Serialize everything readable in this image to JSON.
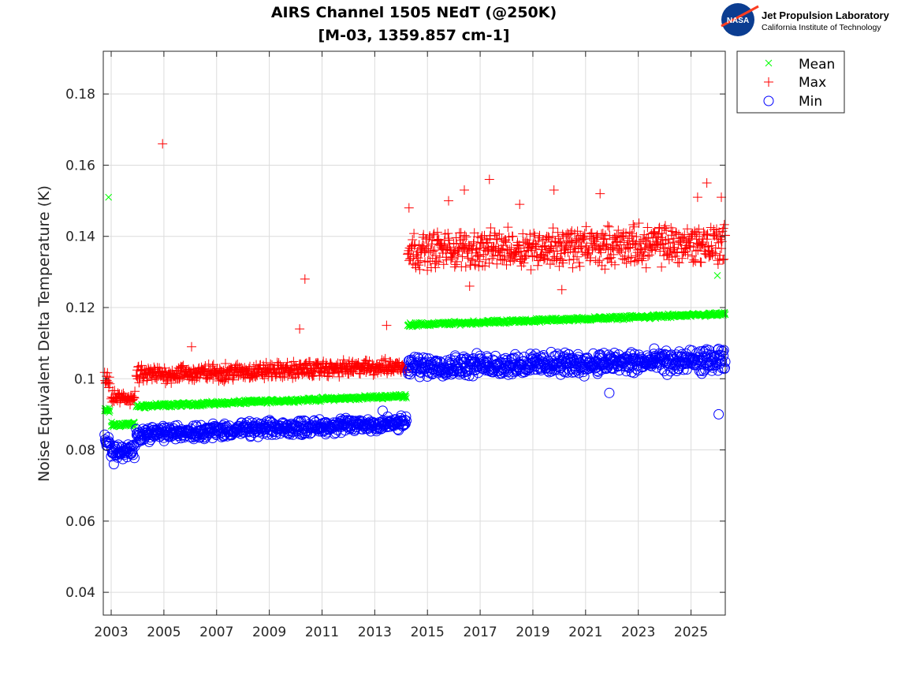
{
  "logo": {
    "emblem_text": "NASA",
    "line1": "Jet Propulsion Laboratory",
    "line2": "California Institute of Technology"
  },
  "chart_data": {
    "type": "scatter",
    "title": [
      "AIRS Channel 1505 NEdT (@250K)",
      "[M-03, 1359.857 cm-1]"
    ],
    "xlabel": "",
    "ylabel": "Noise Equivalent Delta Temperature (K)",
    "xlim": [
      2002.7,
      2026.3
    ],
    "ylim": [
      0.0336,
      0.192
    ],
    "xticks": [
      2003,
      2005,
      2007,
      2009,
      2011,
      2013,
      2015,
      2017,
      2019,
      2021,
      2023,
      2025
    ],
    "xtick_labels": [
      "2003",
      "2005",
      "2007",
      "2009",
      "2011",
      "2013",
      "2015",
      "2017",
      "2019",
      "2021",
      "2023",
      "2025"
    ],
    "yticks": [
      0.04,
      0.06,
      0.08,
      0.1,
      0.12,
      0.14,
      0.16,
      0.18
    ],
    "ytick_labels": [
      "0.04",
      "0.06",
      "0.08",
      "0.1",
      "0.12",
      "0.14",
      "0.16",
      "0.18"
    ],
    "grid": true,
    "legend": "outside-top-right",
    "series": [
      {
        "name": "Mean",
        "marker": "x",
        "color": "#00ff00",
        "bands": [
          {
            "x": [
              2002.75,
              2002.95
            ],
            "y_start": [
              0.09,
              0.092
            ],
            "y_end": [
              0.09,
              0.092
            ]
          },
          {
            "x": [
              2003.0,
              2003.9
            ],
            "y_start": [
              0.086,
              0.088
            ],
            "y_end": [
              0.0865,
              0.088
            ]
          },
          {
            "x": [
              2003.95,
              2014.2
            ],
            "y_start": [
              0.0915,
              0.093
            ],
            "y_end": [
              0.0945,
              0.0958
            ]
          },
          {
            "x": [
              2014.25,
              2026.3
            ],
            "y_start": [
              0.1145,
              0.1158
            ],
            "y_end": [
              0.1175,
              0.1188
            ]
          }
        ],
        "outliers": [
          [
            2002.9,
            0.151
          ],
          [
            2026.0,
            0.129
          ],
          [
            2002.8,
            0.091
          ]
        ]
      },
      {
        "name": "Max",
        "marker": "+",
        "color": "#ff0000",
        "bands": [
          {
            "x": [
              2002.75,
              2002.95
            ],
            "y_start": [
              0.097,
              0.102
            ],
            "y_end": [
              0.097,
              0.102
            ]
          },
          {
            "x": [
              2003.0,
              2003.9
            ],
            "y_start": [
              0.092,
              0.097
            ],
            "y_end": [
              0.092,
              0.097
            ]
          },
          {
            "x": [
              2003.95,
              2014.2
            ],
            "y_start": [
              0.098,
              0.104
            ],
            "y_end": [
              0.101,
              0.106
            ]
          },
          {
            "x": [
              2014.25,
              2026.3
            ],
            "y_start": [
              0.13,
              0.142
            ],
            "y_end": [
              0.131,
              0.145
            ]
          }
        ],
        "outliers": [
          [
            2004.95,
            0.166
          ],
          [
            2010.35,
            0.128
          ],
          [
            2010.15,
            0.114
          ],
          [
            2013.45,
            0.115
          ],
          [
            2006.05,
            0.109
          ],
          [
            2017.35,
            0.156
          ],
          [
            2019.8,
            0.153
          ],
          [
            2025.6,
            0.155
          ],
          [
            2020.1,
            0.125
          ],
          [
            2016.6,
            0.126
          ],
          [
            2021.55,
            0.152
          ],
          [
            2016.4,
            0.153
          ],
          [
            2014.3,
            0.148
          ],
          [
            2026.15,
            0.151
          ],
          [
            2025.25,
            0.151
          ],
          [
            2018.5,
            0.149
          ],
          [
            2015.8,
            0.15
          ]
        ]
      },
      {
        "name": "Min",
        "marker": "o",
        "color": "#0000ff",
        "bands": [
          {
            "x": [
              2002.75,
              2002.95
            ],
            "y_start": [
              0.08,
              0.085
            ],
            "y_end": [
              0.08,
              0.085
            ]
          },
          {
            "x": [
              2003.0,
              2003.9
            ],
            "y_start": [
              0.077,
              0.082
            ],
            "y_end": [
              0.077,
              0.082
            ]
          },
          {
            "x": [
              2003.95,
              2014.2
            ],
            "y_start": [
              0.082,
              0.087
            ],
            "y_end": [
              0.085,
              0.09
            ]
          },
          {
            "x": [
              2014.25,
              2026.3
            ],
            "y_start": [
              0.1,
              0.107
            ],
            "y_end": [
              0.101,
              0.109
            ]
          }
        ],
        "outliers": [
          [
            2026.05,
            0.09
          ],
          [
            2021.9,
            0.096
          ],
          [
            2003.1,
            0.076
          ],
          [
            2013.3,
            0.091
          ]
        ]
      }
    ]
  }
}
